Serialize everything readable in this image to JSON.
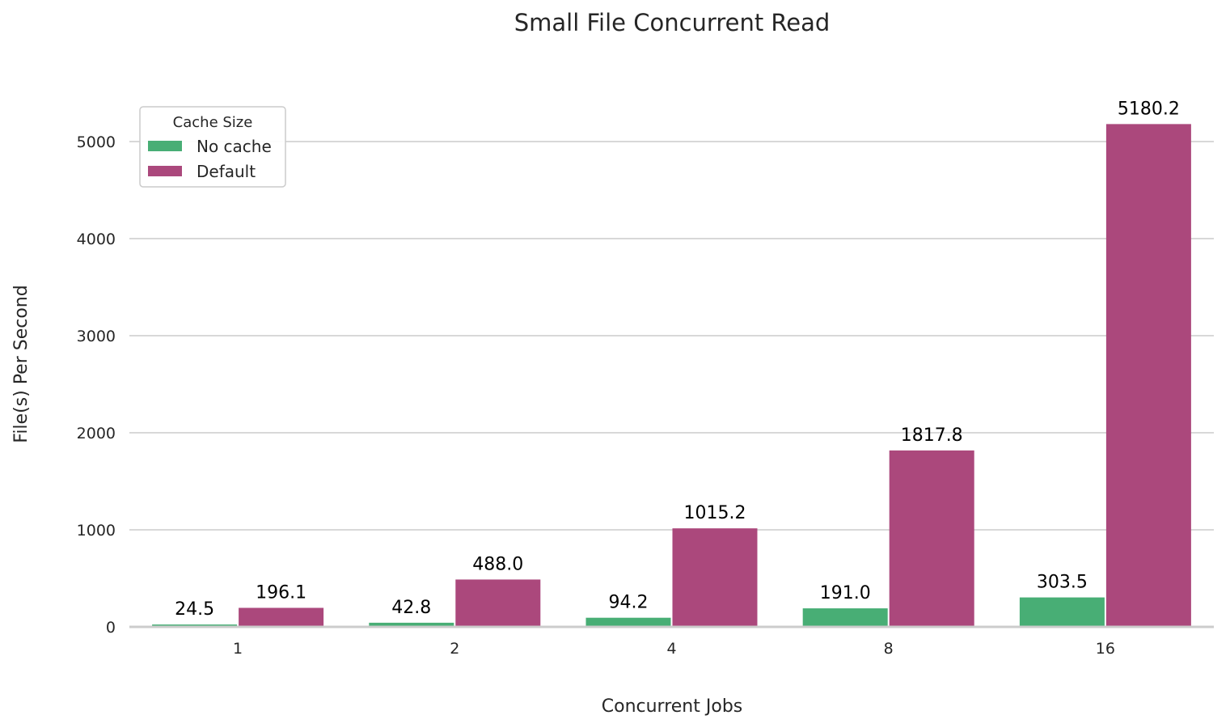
{
  "chart_data": {
    "type": "bar",
    "title": "Small File Concurrent Read",
    "xlabel": "Concurrent Jobs",
    "ylabel": "File(s) Per Second",
    "categories": [
      "1",
      "2",
      "4",
      "8",
      "16"
    ],
    "series": [
      {
        "name": "No cache",
        "color": "#48ae75",
        "values": [
          24.5,
          42.8,
          94.2,
          191.0,
          303.5
        ],
        "labels": [
          "24.5",
          "42.8",
          "94.2",
          "191.0",
          "303.5"
        ]
      },
      {
        "name": "Default",
        "color": "#ab487c",
        "values": [
          196.1,
          488.0,
          1015.2,
          1817.8,
          5180.2
        ],
        "labels": [
          "196.1",
          "488.0",
          "1015.2",
          "1817.8",
          "5180.2"
        ]
      }
    ],
    "yticks": [
      "0",
      "1000",
      "2000",
      "3000",
      "4000",
      "5000"
    ],
    "ylim": [
      0,
      5500
    ],
    "grid": "horizontal",
    "legend": {
      "title": "Cache Size",
      "position": "top-left"
    }
  }
}
